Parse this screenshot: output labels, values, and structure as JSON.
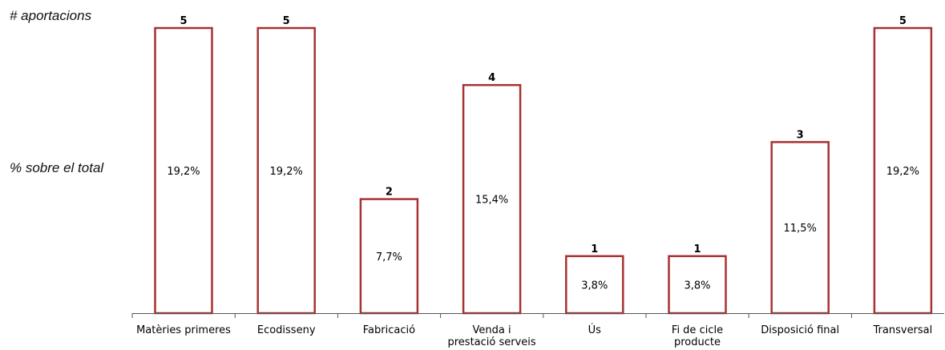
{
  "left_labels": {
    "count_label": "# aportacions",
    "percent_label": "% sobre el total"
  },
  "chart_data": {
    "type": "bar",
    "categories": [
      [
        "Matèries primeres"
      ],
      [
        "Ecodisseny"
      ],
      [
        "Fabricació"
      ],
      [
        "Venda i",
        "prestació serveis"
      ],
      [
        "Ús"
      ],
      [
        "Fi de cicle",
        "producte"
      ],
      [
        "Disposició final"
      ],
      [
        "Transversal"
      ]
    ],
    "values": [
      5,
      5,
      2,
      4,
      1,
      1,
      3,
      5
    ],
    "percent_labels": [
      "19,2%",
      "19,2%",
      "7,7%",
      "15,4%",
      "3,8%",
      "3,8%",
      "11,5%",
      "19,2%"
    ],
    "ylim": [
      0,
      5
    ],
    "grid": false,
    "bar_color": "#a83232"
  }
}
